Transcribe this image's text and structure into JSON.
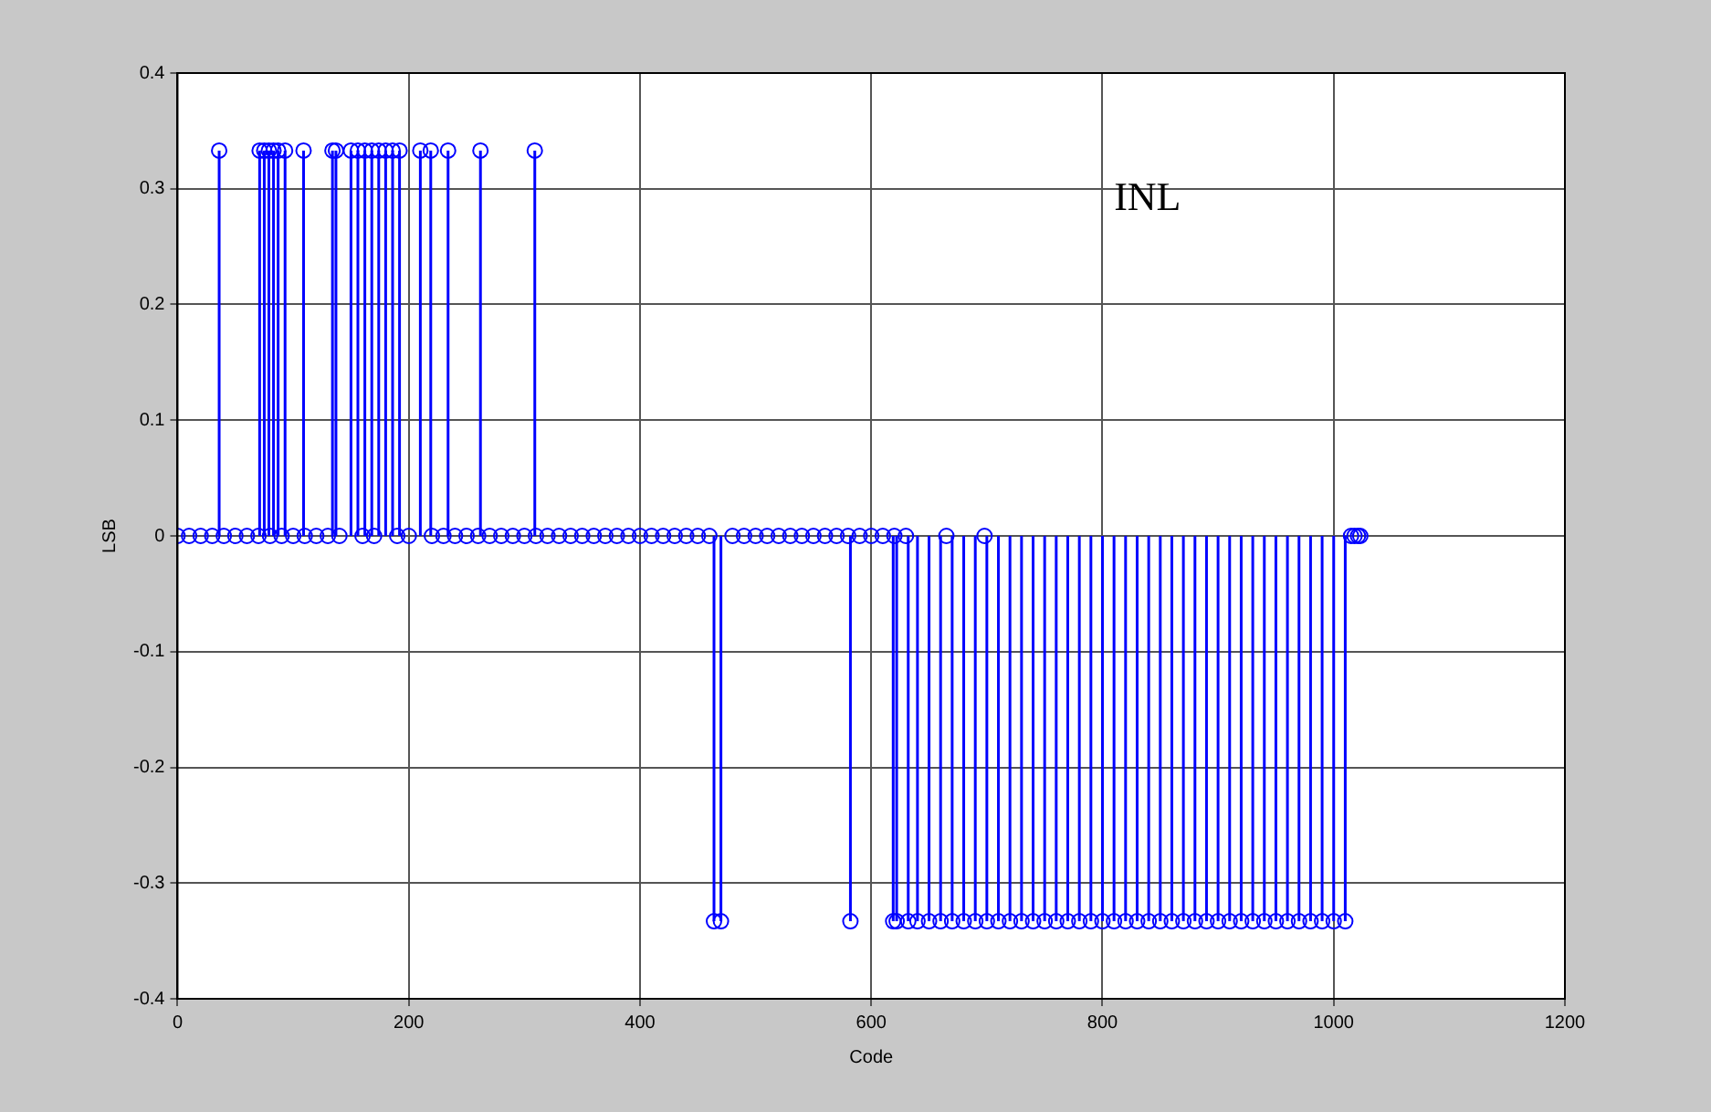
{
  "chart_data": {
    "type": "lollipop",
    "xlabel": "Code",
    "ylabel": "LSB",
    "annotations": [
      "INL"
    ],
    "xlim": [
      0,
      1200
    ],
    "xticks": [
      0,
      200,
      400,
      600,
      800,
      1000,
      1200
    ],
    "ylim": [
      -0.4,
      0.4
    ],
    "yticks": [
      -0.4,
      -0.3,
      -0.2,
      -0.1,
      0,
      0.1,
      0.2,
      0.3,
      0.4
    ],
    "grid": true,
    "marker": "circle",
    "legend": false,
    "series": [
      {
        "color": "#0000ff",
        "x": [
          0,
          10,
          20,
          30,
          36,
          40,
          50,
          60,
          70,
          71,
          75,
          79,
          80,
          83,
          87,
          90,
          93,
          100,
          109,
          110,
          120,
          130,
          134,
          137,
          140,
          150,
          156,
          160,
          162,
          168,
          170,
          174,
          180,
          186,
          190,
          192,
          200,
          210,
          219,
          220,
          230,
          234,
          240,
          250,
          260,
          262,
          270,
          280,
          290,
          300,
          309,
          310,
          320,
          330,
          340,
          350,
          360,
          370,
          380,
          390,
          400,
          410,
          420,
          430,
          440,
          450,
          460,
          464,
          470,
          480,
          490,
          500,
          510,
          520,
          530,
          540,
          550,
          560,
          570,
          580,
          582,
          590,
          600,
          610,
          619,
          620,
          622,
          630,
          632,
          640,
          650,
          660,
          665,
          670,
          680,
          690,
          698,
          700,
          710,
          720,
          730,
          740,
          750,
          760,
          770,
          780,
          790,
          800,
          810,
          820,
          830,
          840,
          850,
          860,
          870,
          880,
          890,
          900,
          910,
          920,
          930,
          940,
          950,
          960,
          970,
          980,
          990,
          1000,
          1010,
          1015,
          1018,
          1021,
          1023
        ],
        "values": [
          0,
          0,
          0,
          0,
          0.333,
          0,
          0,
          0,
          0,
          0.333,
          0.333,
          0.333,
          0,
          0.333,
          0.333,
          0,
          0.333,
          0,
          0.333,
          0,
          0,
          0,
          0.333,
          0.333,
          0,
          0.333,
          0.333,
          0,
          0.333,
          0.333,
          0,
          0.333,
          0.333,
          0.333,
          0,
          0.333,
          0,
          0.333,
          0.333,
          0,
          0,
          0.333,
          0,
          0,
          0,
          0.333,
          0,
          0,
          0,
          0,
          0.333,
          0,
          0,
          0,
          0,
          0,
          0,
          0,
          0,
          0,
          0,
          0,
          0,
          0,
          0,
          0,
          0,
          -0.333,
          -0.333,
          0,
          0,
          0,
          0,
          0,
          0,
          0,
          0,
          0,
          0,
          0,
          -0.333,
          0,
          0,
          0,
          -0.333,
          0,
          -0.333,
          0,
          -0.333,
          -0.333,
          -0.333,
          -0.333,
          0,
          -0.333,
          -0.333,
          -0.333,
          0,
          -0.333,
          -0.333,
          -0.333,
          -0.333,
          -0.333,
          -0.333,
          -0.333,
          -0.333,
          -0.333,
          -0.333,
          -0.333,
          -0.333,
          -0.333,
          -0.333,
          -0.333,
          -0.333,
          -0.333,
          -0.333,
          -0.333,
          -0.333,
          -0.333,
          -0.333,
          -0.333,
          -0.333,
          -0.333,
          -0.333,
          -0.333,
          -0.333,
          -0.333,
          -0.333,
          -0.333,
          -0.333,
          0,
          0,
          0,
          0
        ]
      }
    ]
  }
}
